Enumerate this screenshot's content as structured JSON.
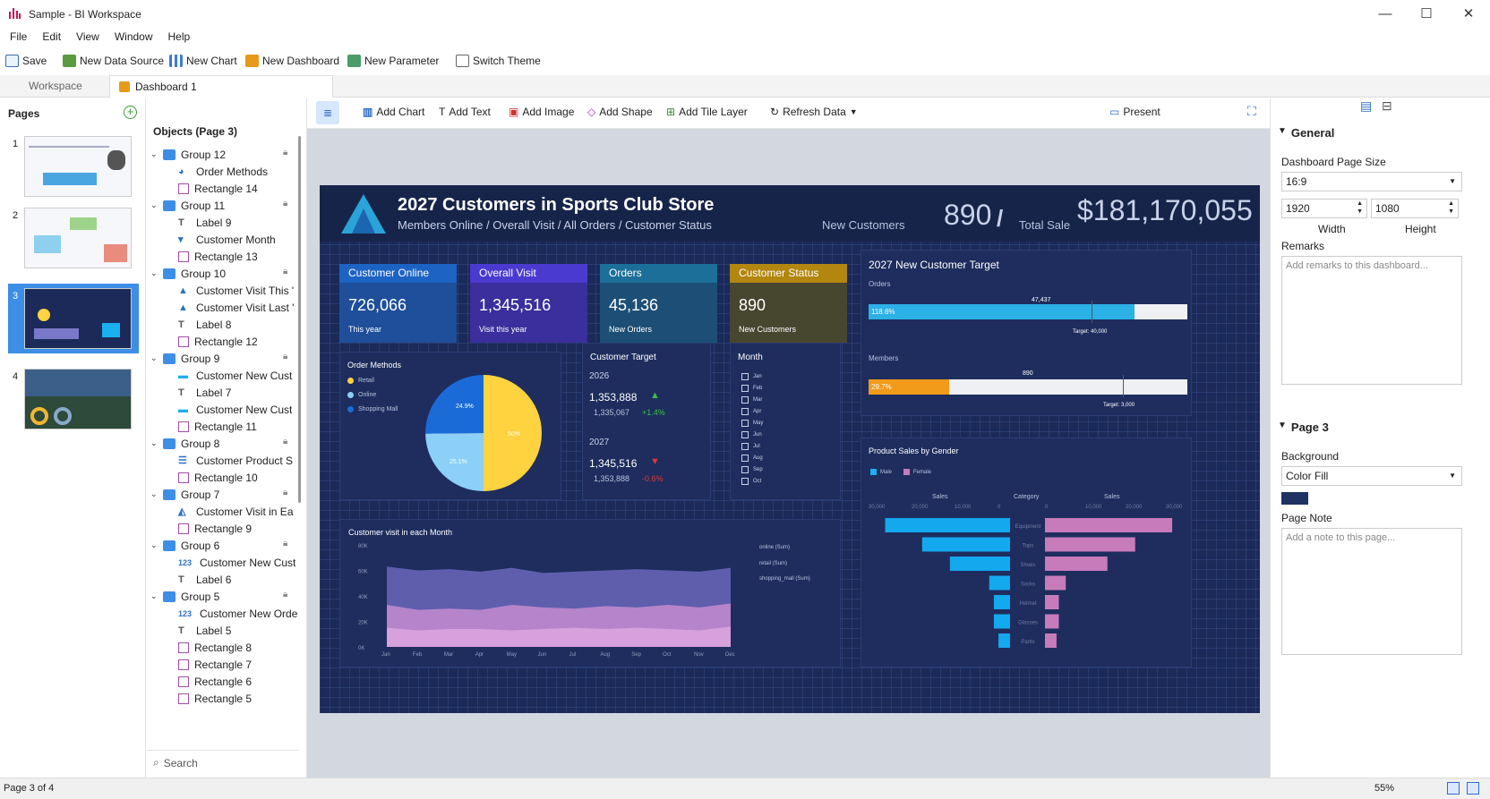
{
  "window": {
    "title": "Sample - BI Workspace",
    "minimize": "—",
    "maximize": "☐",
    "close": "✕"
  },
  "menu": [
    "File",
    "Edit",
    "View",
    "Window",
    "Help"
  ],
  "toolbar": {
    "save": "Save",
    "new_data_source": "New Data Source",
    "new_chart": "New Chart",
    "new_dashboard": "New Dashboard",
    "new_parameter": "New Parameter",
    "switch_theme": "Switch Theme"
  },
  "tabs": {
    "workspace": "Workspace",
    "dashboard": "Dashboard 1"
  },
  "pages": {
    "title": "Pages",
    "items": [
      "1",
      "2",
      "3",
      "4"
    ],
    "selected": 3
  },
  "editor_toolbar": {
    "add_chart": "Add Chart",
    "add_text": "Add Text",
    "add_image": "Add Image",
    "add_shape": "Add Shape",
    "add_tile_layer": "Add Tile Layer",
    "refresh_data": "Refresh Data",
    "present": "Present"
  },
  "objects": {
    "title": "Objects (Page 3)",
    "search_placeholder": "Search",
    "rows": [
      {
        "label": "Group 12",
        "kind": "group"
      },
      {
        "label": "Order Methods",
        "kind": "pie"
      },
      {
        "label": "Rectangle 14",
        "kind": "rect"
      },
      {
        "label": "Group 11",
        "kind": "group"
      },
      {
        "label": "Label 9",
        "kind": "label"
      },
      {
        "label": "Customer Month",
        "kind": "filter"
      },
      {
        "label": "Rectangle 13",
        "kind": "rect"
      },
      {
        "label": "Group 10",
        "kind": "group"
      },
      {
        "label": "Customer Visit This '",
        "kind": "kpi"
      },
      {
        "label": "Customer Visit Last '",
        "kind": "kpi"
      },
      {
        "label": "Label 8",
        "kind": "label"
      },
      {
        "label": "Rectangle 12",
        "kind": "rect"
      },
      {
        "label": "Group 9",
        "kind": "group"
      },
      {
        "label": "Customer New Cust",
        "kind": "bar"
      },
      {
        "label": "Label 7",
        "kind": "label"
      },
      {
        "label": "Customer New Cust",
        "kind": "bar"
      },
      {
        "label": "Rectangle 11",
        "kind": "rect"
      },
      {
        "label": "Group 8",
        "kind": "group"
      },
      {
        "label": "Customer Product S",
        "kind": "funnel"
      },
      {
        "label": "Rectangle 10",
        "kind": "rect"
      },
      {
        "label": "Group 7",
        "kind": "group"
      },
      {
        "label": "Customer Visit in Ea",
        "kind": "area"
      },
      {
        "label": "Rectangle 9",
        "kind": "rect"
      },
      {
        "label": "Group 6",
        "kind": "group"
      },
      {
        "label": "Customer New Cust",
        "kind": "num"
      },
      {
        "label": "Label 6",
        "kind": "label"
      },
      {
        "label": "Group 5",
        "kind": "group"
      },
      {
        "label": "Customer New Orde",
        "kind": "num"
      },
      {
        "label": "Label 5",
        "kind": "label"
      },
      {
        "label": "Rectangle 8",
        "kind": "rect"
      },
      {
        "label": "Rectangle 7",
        "kind": "rect"
      },
      {
        "label": "Rectangle 6",
        "kind": "rect"
      },
      {
        "label": "Rectangle 5",
        "kind": "rect"
      }
    ]
  },
  "dashboard": {
    "title": "2027 Customers in Sports Club Store",
    "subtitle": "Members Online / Overall Visit / All Orders / Customer Status",
    "new_customers_label": "New Customers",
    "new_customers_value": "890",
    "slash": "/",
    "total_sale_label": "Total Sale",
    "total_sale_value": "$181,170,055",
    "kpis": [
      {
        "header": "Customer Online",
        "value": "726,066",
        "sub": "This year",
        "color": "#1f4f9a",
        "hcolor": "#1c63c4"
      },
      {
        "header": "Overall Visit",
        "value": "1,345,516",
        "sub": "Visit this year",
        "color": "#3a2f9c",
        "hcolor": "#4b3ad0"
      },
      {
        "header": "Orders",
        "value": "45,136",
        "sub": "New Orders",
        "color": "#1d4f76",
        "hcolor": "#1b6f99"
      },
      {
        "header": "Customer Status",
        "value": "890",
        "sub": "New Customers",
        "color": "#47462f",
        "hcolor": "#b2860f"
      }
    ],
    "order_methods": {
      "title": "Order Methods",
      "legend": [
        "Retail",
        "Online",
        "Shopping Mall"
      ],
      "labels": [
        "24.9%",
        "25.1%",
        "50%"
      ]
    },
    "customer_target": {
      "title": "Customer Target",
      "y1": "2026",
      "v1": "1,353,888",
      "s1": "1,335,067",
      "c1": "+1.4%",
      "y2": "2027",
      "v2": "1,345,516",
      "s2": "1,353,888",
      "c2": "-0.6%"
    },
    "month": {
      "title": "Month",
      "items": [
        "Jan",
        "Feb",
        "Mar",
        "Apr",
        "May",
        "Jun",
        "Jul",
        "Aug",
        "Sep",
        "Oct"
      ]
    },
    "target": {
      "title": "2027 New Customer Target",
      "orders_label": "Orders",
      "orders_pct": "118.6%",
      "orders_val": "47,437",
      "orders_target": "Target: 40,000",
      "members_label": "Members",
      "members_pct": "29.7%",
      "members_val": "890",
      "members_target": "Target: 3,000"
    },
    "visit_chart": {
      "title": "Customer visit in each Month",
      "legend": [
        "online (Sum)",
        "retail (Sum)",
        "shopping_mall (Sum)"
      ]
    },
    "gender_chart": {
      "title": "Product Sales by Gender",
      "legend": [
        "Male",
        "Female"
      ],
      "sales_left": "Sales",
      "category": "Category",
      "sales_right": "Sales"
    }
  },
  "chart_data": [
    {
      "type": "area",
      "title": "Customer visit in each Month",
      "categories": [
        "Jan",
        "Feb",
        "Mar",
        "Apr",
        "May",
        "Jun",
        "Jul",
        "Aug",
        "Sep",
        "Oct",
        "Nov",
        "Dec"
      ],
      "ylim": [
        0,
        80000
      ],
      "yticks": [
        "80K",
        "60K",
        "40K",
        "20K",
        "0K"
      ],
      "series": [
        {
          "name": "online (Sum)",
          "values": [
            63000,
            60000,
            61000,
            59000,
            62000,
            58000,
            59000,
            60000,
            61000,
            60000,
            59000,
            62000
          ]
        },
        {
          "name": "retail (Sum)",
          "values": [
            33000,
            29000,
            30000,
            29000,
            33000,
            31000,
            30000,
            32000,
            31000,
            33000,
            31000,
            34000
          ]
        },
        {
          "name": "shopping_mall (Sum)",
          "values": [
            15000,
            13000,
            14000,
            14000,
            13000,
            14000,
            15000,
            14000,
            15000,
            14000,
            13000,
            16000
          ]
        }
      ]
    },
    {
      "type": "bar",
      "title": "Product Sales by Gender",
      "categories": [
        "Equipment",
        "Tops",
        "Shoes",
        "Socks",
        "Helmet",
        "Glasses",
        "Pants"
      ],
      "xticks_left": [
        "30,000",
        "20,000",
        "10,000",
        "0"
      ],
      "xticks_right": [
        "0",
        "10,000",
        "20,000",
        "30,000"
      ],
      "series": [
        {
          "name": "Male",
          "values": [
            27000,
            19000,
            13000,
            4500,
            3500,
            3500,
            2500
          ]
        },
        {
          "name": "Female",
          "values": [
            27500,
            19500,
            13500,
            4500,
            3000,
            3000,
            2500
          ]
        }
      ]
    },
    {
      "type": "pie",
      "title": "Order Methods",
      "categories": [
        "Retail",
        "Online",
        "Shopping Mall"
      ],
      "values": [
        50,
        25.1,
        24.9
      ]
    },
    {
      "type": "bar",
      "title": "2027 New Customer Target",
      "categories": [
        "Orders",
        "Members"
      ],
      "values": [
        47437,
        890
      ],
      "targets": [
        40000,
        3000
      ]
    }
  ],
  "properties": {
    "general": "General",
    "page_size_label": "Dashboard Page Size",
    "page_size": "16:9",
    "width": "1920",
    "height": "1080",
    "width_label": "Width",
    "height_label": "Height",
    "remarks_label": "Remarks",
    "remarks_placeholder": "Add remarks to this dashboard...",
    "page_section": "Page 3",
    "background_label": "Background",
    "background": "Color Fill",
    "bg_color": "#1f3363",
    "page_note_label": "Page Note",
    "page_note_placeholder": "Add a note to this page..."
  },
  "status": {
    "page": "Page 3 of 4",
    "zoom": "55%"
  }
}
